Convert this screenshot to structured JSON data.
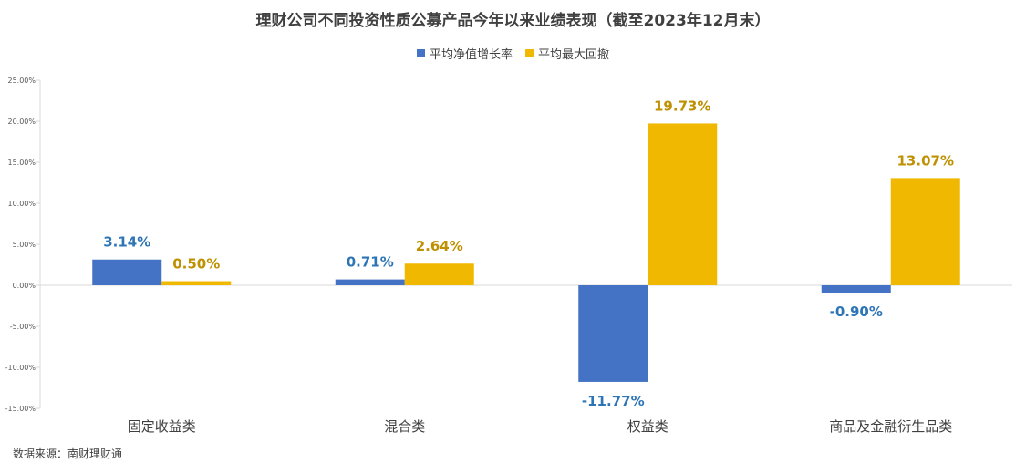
{
  "chart_data": {
    "type": "bar",
    "title": "理财公司不同投资性质公募产品今年以来业绩表现（截至2023年12月末）",
    "categories": [
      "固定收益类",
      "混合类",
      "权益类",
      "商品及金融衍生品类"
    ],
    "series": [
      {
        "name": "平均净值增长率",
        "values": [
          3.14,
          0.71,
          -11.77,
          -0.9
        ],
        "labels": [
          "3.14%",
          "0.71%",
          "-11.77%",
          "-0.90%"
        ],
        "color": "#4472C4",
        "label_color": "#2E75B6"
      },
      {
        "name": "平均最大回撤",
        "values": [
          0.5,
          2.64,
          19.73,
          13.07
        ],
        "labels": [
          "0.50%",
          "2.64%",
          "19.73%",
          "13.07%"
        ],
        "color": "#F0B800",
        "label_color": "#BF9000"
      }
    ],
    "yticks": [
      "25.00%",
      "20.00%",
      "15.00%",
      "10.00%",
      "5.00%",
      "0.00%",
      "-5.00%",
      "-10.00%",
      "-15.00%"
    ],
    "ylim": [
      -15,
      25
    ],
    "legend_position": "top-center",
    "grid": false,
    "xlabel": "",
    "ylabel": ""
  },
  "source": "数据来源：南财理财通"
}
